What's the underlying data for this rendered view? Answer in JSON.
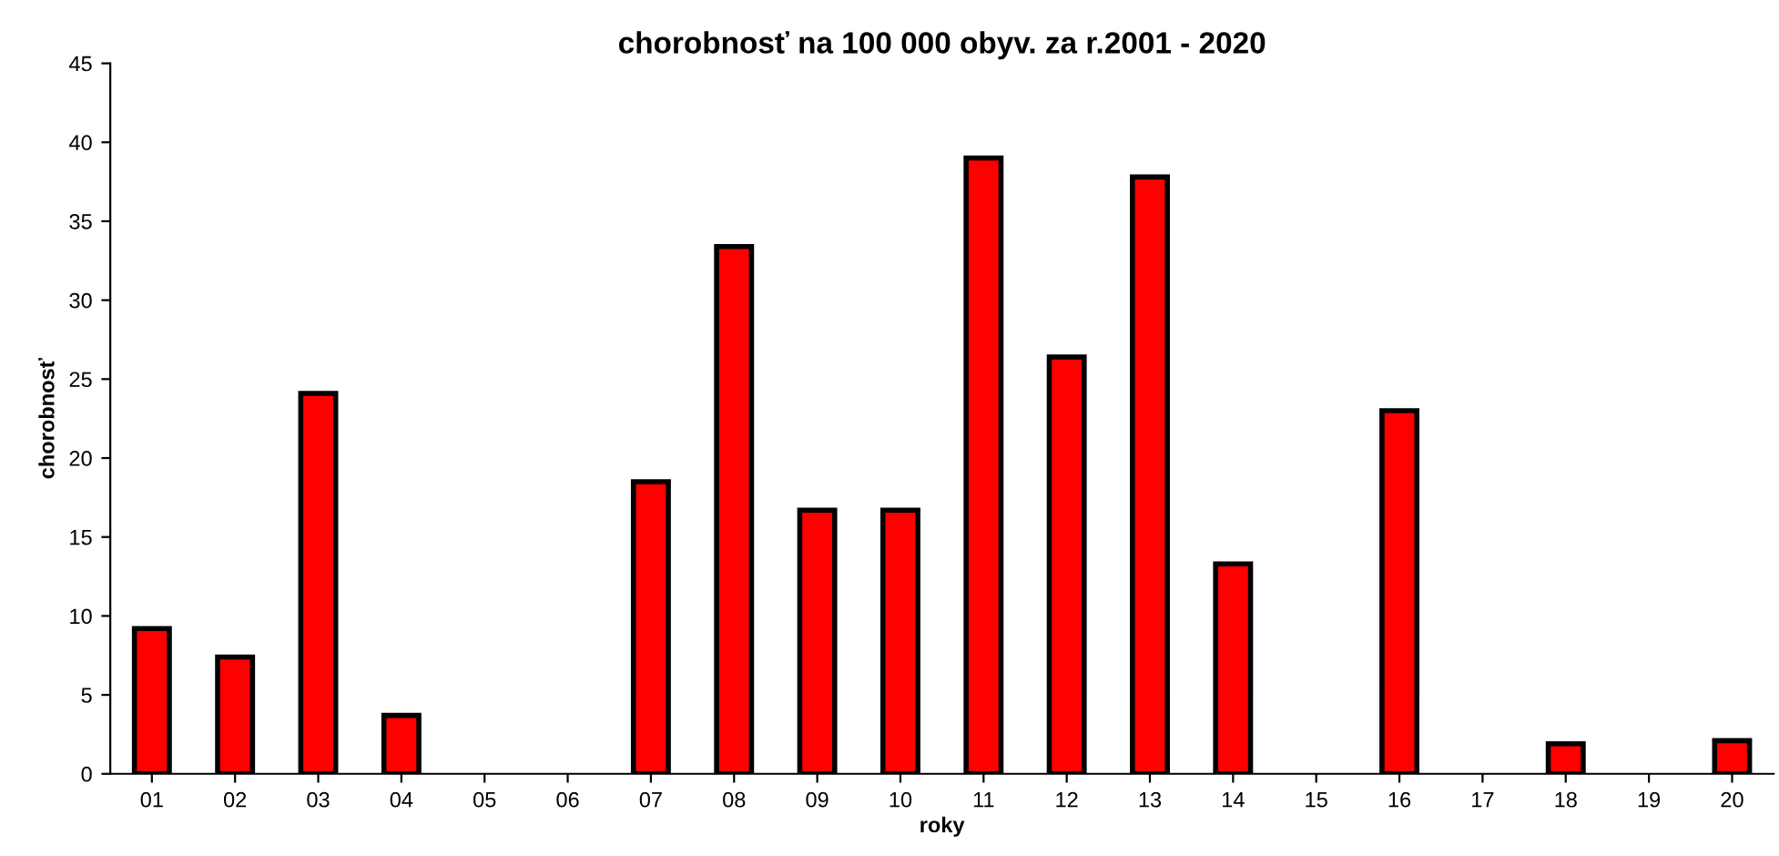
{
  "chart_data": {
    "type": "bar",
    "title": "chorobnosť na 100 000 obyv. za r.2001 - 2020",
    "xlabel": "roky",
    "ylabel": "chorobnosť",
    "categories": [
      "01",
      "02",
      "03",
      "04",
      "05",
      "06",
      "07",
      "08",
      "09",
      "10",
      "11",
      "12",
      "13",
      "14",
      "15",
      "16",
      "17",
      "18",
      "19",
      "20"
    ],
    "values": [
      9.2,
      7.4,
      24.1,
      3.7,
      0,
      0,
      18.5,
      33.4,
      16.7,
      16.7,
      39.0,
      26.4,
      37.8,
      13.3,
      0,
      23.0,
      0,
      1.9,
      0,
      2.1
    ],
    "color": "#ff0000",
    "ylim": [
      0,
      45
    ],
    "yticks": [
      0,
      5,
      10,
      15,
      20,
      25,
      30,
      35,
      40,
      45
    ],
    "grid": false
  }
}
